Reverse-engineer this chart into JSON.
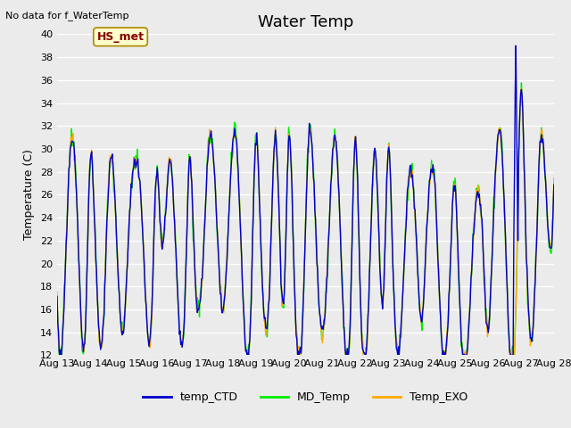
{
  "title": "Water Temp",
  "ylabel": "Temperature (C)",
  "top_left_text": "No data for f_WaterTemp",
  "annotation_text": "HS_met",
  "ylim": [
    12,
    40
  ],
  "yticks": [
    12,
    14,
    16,
    18,
    20,
    22,
    24,
    26,
    28,
    30,
    32,
    34,
    36,
    38,
    40
  ],
  "xtick_labels": [
    "Aug 13",
    "Aug 14",
    "Aug 15",
    "Aug 16",
    "Aug 17",
    "Aug 18",
    "Aug 19",
    "Aug 20",
    "Aug 21",
    "Aug 22",
    "Aug 23",
    "Aug 24",
    "Aug 25",
    "Aug 26",
    "Aug 27",
    "Aug 28"
  ],
  "line_colors": {
    "temp_CTD": "#0000cc",
    "MD_Temp": "#00ee00",
    "Temp_EXO": "#ffaa00"
  },
  "line_widths": {
    "temp_CTD": 1.0,
    "MD_Temp": 1.0,
    "Temp_EXO": 1.0
  },
  "plot_bg_color": "#ebebeb",
  "fig_bg_color": "#ebebeb",
  "grid_color": "white",
  "title_fontsize": 13,
  "label_fontsize": 9,
  "tick_fontsize": 8,
  "legend_fontsize": 9,
  "annotation_box_facecolor": "#ffffcc",
  "annotation_box_edgecolor": "#aa8800",
  "annotation_text_color": "#880000",
  "annotation_fontsize": 9
}
